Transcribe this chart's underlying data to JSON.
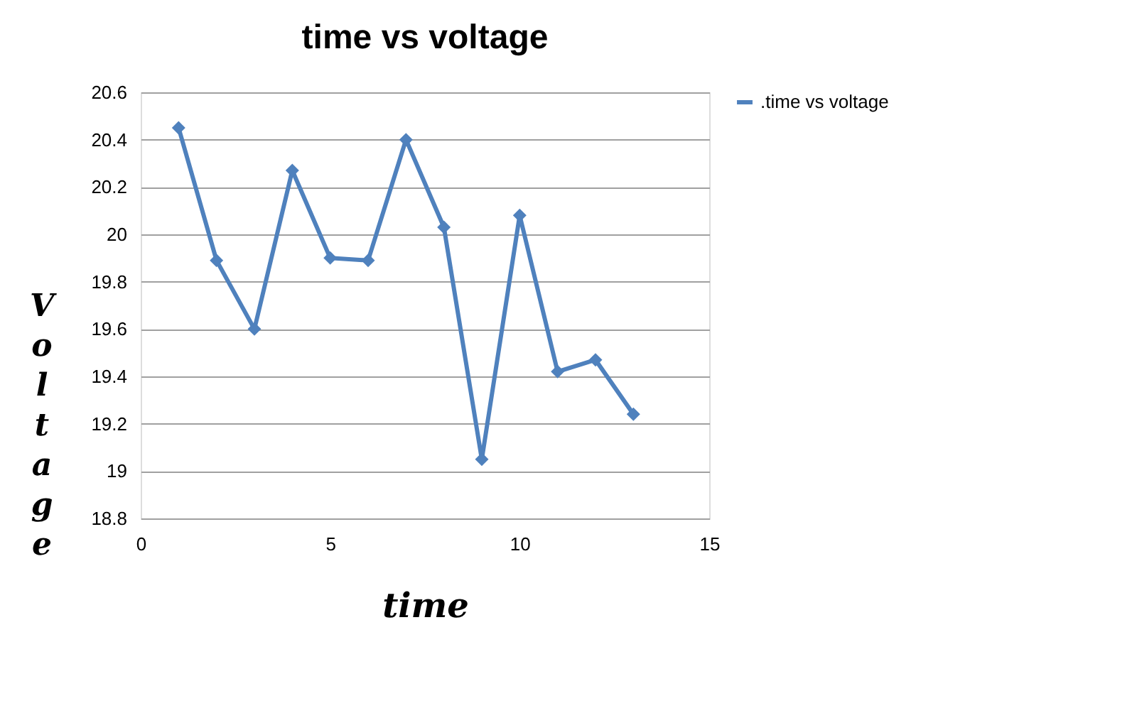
{
  "chart_data": {
    "type": "line",
    "title": "time vs voltage",
    "xlabel": "time",
    "ylabel": "Voltage",
    "x": [
      1,
      2,
      3,
      4,
      5,
      6,
      7,
      8,
      9,
      10,
      11,
      12,
      13
    ],
    "series": [
      {
        "name": ".time vs voltage",
        "color": "#4f81bd",
        "values": [
          20.45,
          19.89,
          19.6,
          20.27,
          19.9,
          19.89,
          20.4,
          20.03,
          19.05,
          20.08,
          19.42,
          19.47,
          19.24
        ]
      }
    ],
    "xlim": [
      0,
      15
    ],
    "xticks": [
      0,
      5,
      10,
      15
    ],
    "ylim": [
      18.8,
      20.6
    ],
    "yticks": [
      18.8,
      19,
      19.2,
      19.4,
      19.6,
      19.8,
      20,
      20.2,
      20.4,
      20.6
    ],
    "grid": "y",
    "legend": "right",
    "marker": "diamond",
    "line_style": "solid"
  }
}
